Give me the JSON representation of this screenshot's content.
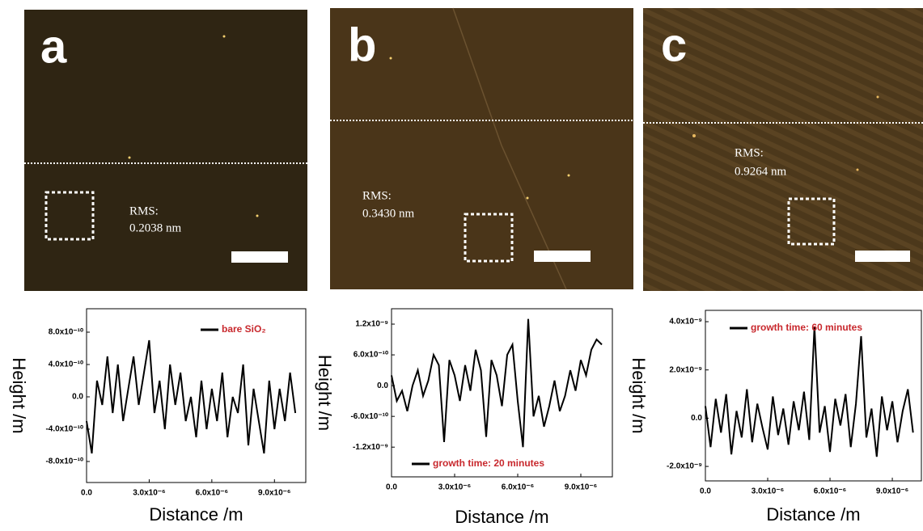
{
  "panels": [
    {
      "label": "a",
      "rms_label": "RMS:",
      "rms_value": "0.2038 nm"
    },
    {
      "label": "b",
      "rms_label": "RMS:",
      "rms_value": "0.3430 nm"
    },
    {
      "label": "c",
      "rms_label": "RMS:",
      "rms_value": "0.9264 nm"
    }
  ],
  "chart_data": [
    {
      "type": "line",
      "xlabel": "Distance /m",
      "ylabel": "Height /m",
      "legend": "upper right",
      "xlim": [
        0,
        1.05e-05
      ],
      "ylim": [
        -1.06e-09,
        1.09e-09
      ],
      "xticks": [
        {
          "value": 0,
          "label": "0.0"
        },
        {
          "value": 3e-06,
          "label": "3.0x10⁻⁶"
        },
        {
          "value": 6e-06,
          "label": "6.0x10⁻⁶"
        },
        {
          "value": 9e-06,
          "label": "9.0x10⁻⁶"
        }
      ],
      "yticks": [
        {
          "value": 8e-10,
          "label": "8.0x10⁻¹⁰"
        },
        {
          "value": 4e-10,
          "label": "4.0x10⁻¹⁰"
        },
        {
          "value": 0,
          "label": "0.0"
        },
        {
          "value": -4e-10,
          "label": "-4.0x10⁻¹⁰"
        },
        {
          "value": -8e-10,
          "label": "-8.0x10⁻¹⁰"
        }
      ],
      "x": [
        0,
        2.5e-07,
        5e-07,
        7.5e-07,
        1e-06,
        1.25e-06,
        1.5e-06,
        1.75e-06,
        2e-06,
        2.25e-06,
        2.5e-06,
        2.75e-06,
        3e-06,
        3.25e-06,
        3.5e-06,
        3.75e-06,
        4e-06,
        4.25e-06,
        4.5e-06,
        4.75e-06,
        5e-06,
        5.25e-06,
        5.5e-06,
        5.75e-06,
        6e-06,
        6.25e-06,
        6.5e-06,
        6.75e-06,
        7e-06,
        7.25e-06,
        7.5e-06,
        7.75e-06,
        8e-06,
        8.25e-06,
        8.5e-06,
        8.75e-06,
        9e-06,
        9.25e-06,
        9.5e-06,
        9.75e-06,
        1e-05
      ],
      "series": [
        {
          "name": "bare SiO₂",
          "color": "#000000",
          "label_color": "#c8282d",
          "values": [
            -3e-10,
            -7e-10,
            2e-10,
            -1e-10,
            5e-10,
            -2e-10,
            4e-10,
            -3e-10,
            1e-10,
            5e-10,
            -1e-10,
            3e-10,
            7e-10,
            -2e-10,
            2e-10,
            -4e-10,
            4e-10,
            -1e-10,
            3e-10,
            -3e-10,
            0,
            -5e-10,
            2e-10,
            -4e-10,
            1e-10,
            -3e-10,
            3e-10,
            -5e-10,
            0,
            -2e-10,
            4e-10,
            -6e-10,
            1e-10,
            -3e-10,
            -7e-10,
            2e-10,
            -4e-10,
            1e-10,
            -3e-10,
            3e-10,
            -2e-10
          ]
        }
      ]
    },
    {
      "type": "line",
      "xlabel": "Distance /m",
      "ylabel": "Height /m",
      "legend": "lower left",
      "xlim": [
        0,
        1.05e-05
      ],
      "ylim": [
        -1.78e-09,
        1.5e-09
      ],
      "xticks": [
        {
          "value": 0,
          "label": "0.0"
        },
        {
          "value": 3e-06,
          "label": "3.0x10⁻⁶"
        },
        {
          "value": 6e-06,
          "label": "6.0x10⁻⁶"
        },
        {
          "value": 9e-06,
          "label": "9.0x10⁻⁶"
        }
      ],
      "yticks": [
        {
          "value": 1.2e-09,
          "label": "1.2x10⁻⁹"
        },
        {
          "value": 6e-10,
          "label": "6.0x10⁻¹⁰"
        },
        {
          "value": 0,
          "label": "0.0"
        },
        {
          "value": -6e-10,
          "label": "-6.0x10⁻¹⁰"
        },
        {
          "value": -1.2e-09,
          "label": "-1.2x10⁻⁹"
        }
      ],
      "x": [
        0,
        2.5e-07,
        5e-07,
        7.5e-07,
        1e-06,
        1.25e-06,
        1.5e-06,
        1.75e-06,
        2e-06,
        2.25e-06,
        2.5e-06,
        2.75e-06,
        3e-06,
        3.25e-06,
        3.5e-06,
        3.75e-06,
        4e-06,
        4.25e-06,
        4.5e-06,
        4.75e-06,
        5e-06,
        5.25e-06,
        5.5e-06,
        5.75e-06,
        6e-06,
        6.25e-06,
        6.5e-06,
        6.75e-06,
        7e-06,
        7.25e-06,
        7.5e-06,
        7.75e-06,
        8e-06,
        8.25e-06,
        8.5e-06,
        8.75e-06,
        9e-06,
        9.25e-06,
        9.5e-06,
        9.75e-06,
        1e-05
      ],
      "series": [
        {
          "name": "growth time: 20 minutes",
          "color": "#000000",
          "label_color": "#c8282d",
          "values": [
            2e-10,
            -3e-10,
            -1e-10,
            -5e-10,
            0,
            3e-10,
            -2e-10,
            1e-10,
            6e-10,
            4e-10,
            -1.1e-09,
            5e-10,
            2e-10,
            -3e-10,
            4e-10,
            -1e-10,
            7e-10,
            3e-10,
            -1e-09,
            5e-10,
            2e-10,
            -4e-10,
            6e-10,
            8e-10,
            -3e-10,
            -1.2e-09,
            1.3e-09,
            -6e-10,
            -2e-10,
            -8e-10,
            -4e-10,
            1e-10,
            -5e-10,
            -2e-10,
            3e-10,
            -1e-10,
            5e-10,
            2e-10,
            7e-10,
            9e-10,
            8e-10
          ]
        }
      ]
    },
    {
      "type": "line",
      "xlabel": "Distance /m",
      "ylabel": "Height /m",
      "legend": "upper left",
      "xlim": [
        0,
        1.04e-05
      ],
      "ylim": [
        -2.6e-09,
        4.47e-09
      ],
      "xticks": [
        {
          "value": 0,
          "label": "0.0"
        },
        {
          "value": 3e-06,
          "label": "3.0x10⁻⁶"
        },
        {
          "value": 6e-06,
          "label": "6.0x10⁻⁶"
        },
        {
          "value": 9e-06,
          "label": "9.0x10⁻⁶"
        }
      ],
      "yticks": [
        {
          "value": 4e-09,
          "label": "4.0x10⁻⁹"
        },
        {
          "value": 2e-09,
          "label": "2.0x10⁻⁹"
        },
        {
          "value": 0,
          "label": "0.0"
        },
        {
          "value": -2e-09,
          "label": "-2.0x10⁻⁹"
        }
      ],
      "x": [
        0,
        2.5e-07,
        5e-07,
        7.5e-07,
        1e-06,
        1.25e-06,
        1.5e-06,
        1.75e-06,
        2e-06,
        2.25e-06,
        2.5e-06,
        2.75e-06,
        3e-06,
        3.25e-06,
        3.5e-06,
        3.75e-06,
        4e-06,
        4.25e-06,
        4.5e-06,
        4.75e-06,
        5e-06,
        5.25e-06,
        5.5e-06,
        5.75e-06,
        6e-06,
        6.25e-06,
        6.5e-06,
        6.75e-06,
        7e-06,
        7.25e-06,
        7.5e-06,
        7.75e-06,
        8e-06,
        8.25e-06,
        8.5e-06,
        8.75e-06,
        9e-06,
        9.25e-06,
        9.5e-06,
        9.75e-06,
        1e-05
      ],
      "series": [
        {
          "name": "growth time: 60 minutes",
          "color": "#000000",
          "label_color": "#c8282d",
          "values": [
            5e-10,
            -1.2e-09,
            8e-10,
            -6e-10,
            1e-09,
            -1.5e-09,
            3e-10,
            -8e-10,
            1.2e-09,
            -1e-09,
            6e-10,
            -4e-10,
            -1.3e-09,
            9e-10,
            -7e-10,
            4e-10,
            -1.1e-09,
            7e-10,
            -5e-10,
            1.1e-09,
            -9e-10,
            3.8e-09,
            -6e-10,
            5e-10,
            -1.4e-09,
            8e-10,
            -3e-10,
            1e-09,
            -1.2e-09,
            6e-10,
            3.4e-09,
            -8e-10,
            4e-10,
            -1.6e-09,
            9e-10,
            -5e-10,
            7e-10,
            -1e-09,
            3e-10,
            1.2e-09,
            -6e-10
          ]
        }
      ]
    }
  ]
}
